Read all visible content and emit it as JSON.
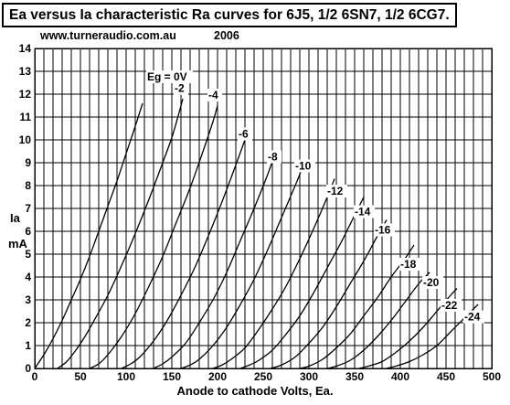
{
  "chart_data": {
    "type": "line",
    "title": "Ea versus Ia characteristic Ra curves for 6J5, 1/2 6SN7, 1/2 6CG7.",
    "subtitle": "www.turneraudio.com.au",
    "year": "2006",
    "xlabel": "Anode to cathode Volts, Ea.",
    "ylabel_lines": [
      "Ia",
      "mA"
    ],
    "xlim": [
      0,
      500
    ],
    "ylim": [
      0,
      14
    ],
    "x_ticks": [
      "0",
      "50",
      "100",
      "150",
      "200",
      "250",
      "300",
      "350",
      "400",
      "450",
      "500"
    ],
    "y_ticks": [
      "0",
      "1",
      "2",
      "3",
      "4",
      "5",
      "6",
      "7",
      "8",
      "9",
      "10",
      "11",
      "12",
      "13",
      "14"
    ],
    "grid": true,
    "series": [
      {
        "name": "Eg = 0V",
        "points": [
          [
            0,
            0
          ],
          [
            10,
            0.6
          ],
          [
            20,
            1.3
          ],
          [
            30,
            2.1
          ],
          [
            40,
            3.0
          ],
          [
            50,
            3.9
          ],
          [
            60,
            4.9
          ],
          [
            70,
            6.0
          ],
          [
            80,
            7.1
          ],
          [
            90,
            8.2
          ],
          [
            100,
            9.4
          ],
          [
            110,
            10.6
          ],
          [
            118,
            11.6
          ]
        ]
      },
      {
        "name": "-2",
        "points": [
          [
            25,
            0
          ],
          [
            35,
            0.3
          ],
          [
            45,
            0.8
          ],
          [
            55,
            1.4
          ],
          [
            65,
            2.1
          ],
          [
            80,
            3.2
          ],
          [
            95,
            4.5
          ],
          [
            110,
            5.9
          ],
          [
            125,
            7.4
          ],
          [
            140,
            9.0
          ],
          [
            150,
            10.1
          ],
          [
            158,
            11.2
          ],
          [
            162,
            11.8
          ]
        ]
      },
      {
        "name": "-4",
        "points": [
          [
            60,
            0
          ],
          [
            70,
            0.2
          ],
          [
            80,
            0.6
          ],
          [
            95,
            1.4
          ],
          [
            110,
            2.4
          ],
          [
            125,
            3.6
          ],
          [
            140,
            4.9
          ],
          [
            155,
            6.4
          ],
          [
            170,
            7.9
          ],
          [
            185,
            9.6
          ],
          [
            195,
            10.8
          ],
          [
            200,
            11.5
          ]
        ]
      },
      {
        "name": "-6",
        "points": [
          [
            95,
            0
          ],
          [
            105,
            0.2
          ],
          [
            115,
            0.5
          ],
          [
            130,
            1.2
          ],
          [
            145,
            2.1
          ],
          [
            160,
            3.2
          ],
          [
            175,
            4.4
          ],
          [
            190,
            5.8
          ],
          [
            205,
            7.3
          ],
          [
            220,
            8.9
          ],
          [
            230,
            10.0
          ]
        ]
      },
      {
        "name": "-8",
        "points": [
          [
            130,
            0
          ],
          [
            140,
            0.2
          ],
          [
            150,
            0.5
          ],
          [
            165,
            1.1
          ],
          [
            180,
            2.0
          ],
          [
            195,
            3.0
          ],
          [
            210,
            4.2
          ],
          [
            225,
            5.6
          ],
          [
            240,
            7.0
          ],
          [
            255,
            8.5
          ],
          [
            262,
            9.3
          ]
        ]
      },
      {
        "name": "-10",
        "points": [
          [
            160,
            0
          ],
          [
            170,
            0.15
          ],
          [
            180,
            0.4
          ],
          [
            195,
            1.0
          ],
          [
            210,
            1.8
          ],
          [
            225,
            2.8
          ],
          [
            240,
            3.9
          ],
          [
            255,
            5.2
          ],
          [
            270,
            6.6
          ],
          [
            285,
            8.0
          ],
          [
            295,
            9.0
          ]
        ]
      },
      {
        "name": "-12",
        "points": [
          [
            195,
            0
          ],
          [
            205,
            0.15
          ],
          [
            215,
            0.4
          ],
          [
            230,
            0.9
          ],
          [
            245,
            1.7
          ],
          [
            260,
            2.6
          ],
          [
            275,
            3.6
          ],
          [
            290,
            4.8
          ],
          [
            305,
            6.1
          ],
          [
            318,
            7.3
          ],
          [
            328,
            8.3
          ]
        ]
      },
      {
        "name": "-14",
        "points": [
          [
            225,
            0
          ],
          [
            235,
            0.15
          ],
          [
            245,
            0.35
          ],
          [
            260,
            0.8
          ],
          [
            275,
            1.5
          ],
          [
            290,
            2.3
          ],
          [
            305,
            3.3
          ],
          [
            320,
            4.4
          ],
          [
            335,
            5.5
          ],
          [
            350,
            6.7
          ],
          [
            360,
            7.5
          ]
        ]
      },
      {
        "name": "-16",
        "points": [
          [
            258,
            0
          ],
          [
            270,
            0.15
          ],
          [
            285,
            0.5
          ],
          [
            300,
            1.1
          ],
          [
            315,
            1.8
          ],
          [
            330,
            2.7
          ],
          [
            345,
            3.7
          ],
          [
            360,
            4.7
          ],
          [
            375,
            5.8
          ],
          [
            385,
            6.5
          ]
        ]
      },
      {
        "name": "-18",
        "points": [
          [
            290,
            0
          ],
          [
            300,
            0.1
          ],
          [
            315,
            0.4
          ],
          [
            330,
            0.9
          ],
          [
            345,
            1.5
          ],
          [
            360,
            2.3
          ],
          [
            375,
            3.1
          ],
          [
            390,
            4.0
          ],
          [
            405,
            4.8
          ],
          [
            415,
            5.4
          ]
        ]
      },
      {
        "name": "-20",
        "points": [
          [
            320,
            0
          ],
          [
            330,
            0.1
          ],
          [
            345,
            0.35
          ],
          [
            360,
            0.8
          ],
          [
            375,
            1.4
          ],
          [
            390,
            2.1
          ],
          [
            405,
            2.9
          ],
          [
            420,
            3.7
          ],
          [
            432,
            4.2
          ]
        ]
      },
      {
        "name": "-22",
        "points": [
          [
            355,
            0
          ],
          [
            365,
            0.1
          ],
          [
            380,
            0.3
          ],
          [
            395,
            0.7
          ],
          [
            410,
            1.2
          ],
          [
            425,
            1.8
          ],
          [
            440,
            2.5
          ],
          [
            455,
            3.2
          ],
          [
            462,
            3.5
          ]
        ]
      },
      {
        "name": "-24",
        "points": [
          [
            385,
            0
          ],
          [
            395,
            0.1
          ],
          [
            410,
            0.3
          ],
          [
            425,
            0.6
          ],
          [
            440,
            1.0
          ],
          [
            455,
            1.6
          ],
          [
            470,
            2.2
          ],
          [
            480,
            2.6
          ],
          [
            485,
            2.8
          ]
        ]
      }
    ],
    "label_anchor_points": [
      [
        123,
        12.6
      ],
      [
        153,
        12.1
      ],
      [
        190,
        11.8
      ],
      [
        223,
        10.1
      ],
      [
        255,
        9.1
      ],
      [
        285,
        8.7
      ],
      [
        320,
        7.6
      ],
      [
        350,
        6.7
      ],
      [
        372,
        5.9
      ],
      [
        400,
        4.4
      ],
      [
        425,
        3.6
      ],
      [
        445,
        2.6
      ],
      [
        470,
        2.1
      ]
    ]
  }
}
